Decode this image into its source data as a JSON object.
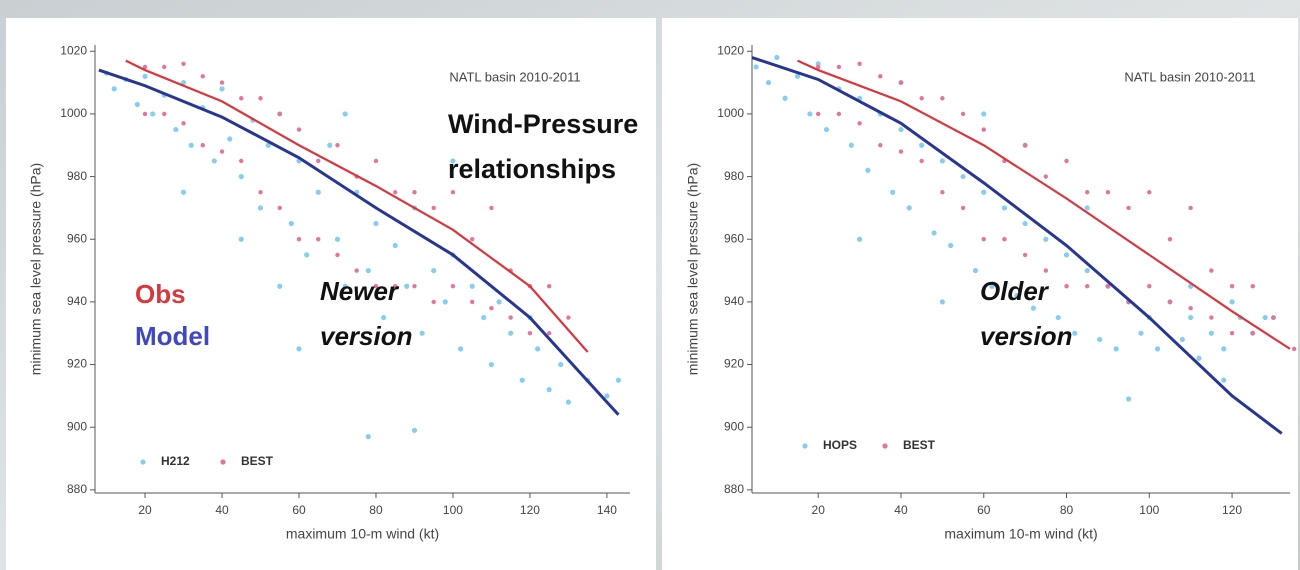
{
  "chart_data": [
    {
      "type": "scatter",
      "title": "NATL basin 2010-2011",
      "xlabel": "maximum 10-m wind (kt)",
      "ylabel": "minimum sea level pressure (hPa)",
      "xlim": [
        7,
        146
      ],
      "ylim": [
        879,
        1022
      ],
      "xticks": [
        20,
        40,
        60,
        80,
        100,
        120,
        140
      ],
      "yticks": [
        880,
        900,
        920,
        940,
        960,
        980,
        1000,
        1020
      ],
      "legend": "lower left",
      "series": [
        {
          "name": "H212",
          "color": "#87cdee",
          "x": [
            10,
            12,
            15,
            18,
            20,
            22,
            25,
            28,
            30,
            32,
            35,
            38,
            40,
            42,
            45,
            48,
            50,
            52,
            55,
            58,
            60,
            62,
            65,
            68,
            70,
            72,
            75,
            78,
            80,
            82,
            85,
            88,
            90,
            92,
            95,
            98,
            100,
            102,
            105,
            108,
            110,
            112,
            115,
            118,
            120,
            122,
            125,
            128,
            130,
            135,
            140,
            143,
            78,
            90,
            60,
            45,
            30,
            100,
            72,
            55
          ],
          "values": [
            1013,
            1008,
            1011,
            1003,
            1012,
            1000,
            1006,
            995,
            1010,
            990,
            1002,
            985,
            1008,
            992,
            980,
            998,
            970,
            990,
            1000,
            965,
            985,
            955,
            975,
            990,
            960,
            945,
            975,
            950,
            965,
            935,
            958,
            945,
            970,
            930,
            950,
            940,
            955,
            925,
            945,
            935,
            920,
            940,
            930,
            915,
            935,
            925,
            912,
            920,
            908,
            915,
            910,
            915,
            897,
            899,
            925,
            960,
            975,
            985,
            1000,
            945
          ]
        },
        {
          "name": "BEST",
          "color": "#e6739a",
          "x": [
            20,
            20,
            25,
            25,
            30,
            30,
            35,
            35,
            40,
            40,
            45,
            45,
            50,
            50,
            55,
            55,
            60,
            60,
            65,
            65,
            70,
            70,
            75,
            75,
            80,
            80,
            85,
            85,
            90,
            90,
            95,
            95,
            100,
            100,
            105,
            105,
            110,
            110,
            115,
            115,
            120,
            120,
            125,
            125,
            130
          ],
          "values": [
            1015,
            1000,
            1015,
            1000,
            1016,
            997,
            1012,
            990,
            1010,
            988,
            1005,
            985,
            1005,
            975,
            1000,
            970,
            995,
            960,
            985,
            960,
            990,
            955,
            980,
            950,
            985,
            945,
            975,
            945,
            975,
            945,
            970,
            940,
            975,
            945,
            960,
            940,
            970,
            938,
            950,
            935,
            945,
            930,
            945,
            930,
            935
          ]
        }
      ],
      "lines": [
        {
          "color": "#d9363e",
          "x": [
            15,
            20,
            40,
            60,
            80,
            100,
            120,
            135
          ],
          "values": [
            1017,
            1014,
            1004,
            990,
            977,
            963,
            945,
            924
          ]
        },
        {
          "color": "#283593",
          "x": [
            8,
            20,
            40,
            60,
            80,
            100,
            120,
            140,
            143
          ],
          "values": [
            1014,
            1009,
            999,
            986,
            970,
            955,
            935,
            908,
            904
          ]
        }
      ],
      "annotations": [
        {
          "lines": [
            "Wind-Pressure",
            "relationships"
          ],
          "color": "#111111"
        },
        {
          "lines": [
            "Obs"
          ],
          "color": "#d9363e"
        },
        {
          "lines": [
            "Model"
          ],
          "color": "#3f48c0"
        },
        {
          "lines": [
            "Newer",
            "version"
          ],
          "color": "#111111"
        }
      ]
    },
    {
      "type": "scatter",
      "title": "NATL basin 2010-2011",
      "xlabel": "maximum 10-m wind (kt)",
      "ylabel": "minimum sea level pressure (hPa)",
      "xlim": [
        4,
        134
      ],
      "ylim": [
        879,
        1022
      ],
      "xticks": [
        20,
        40,
        60,
        80,
        100,
        120
      ],
      "yticks": [
        880,
        900,
        920,
        940,
        960,
        980,
        1000,
        1020
      ],
      "legend": "lower left",
      "series": [
        {
          "name": "HOPS",
          "color": "#87cdee",
          "x": [
            5,
            8,
            10,
            12,
            15,
            18,
            20,
            22,
            25,
            28,
            30,
            32,
            35,
            38,
            40,
            42,
            45,
            48,
            50,
            52,
            55,
            58,
            60,
            62,
            65,
            68,
            70,
            72,
            75,
            78,
            80,
            82,
            85,
            88,
            90,
            92,
            95,
            98,
            100,
            102,
            105,
            108,
            110,
            112,
            115,
            118,
            120,
            122,
            125,
            128,
            130,
            95,
            50,
            30,
            70,
            85,
            110,
            60,
            40,
            118
          ],
          "values": [
            1015,
            1010,
            1018,
            1005,
            1012,
            1000,
            1016,
            995,
            1008,
            990,
            1005,
            982,
            1000,
            975,
            995,
            970,
            990,
            962,
            985,
            958,
            980,
            950,
            975,
            945,
            970,
            942,
            965,
            938,
            960,
            935,
            955,
            930,
            950,
            928,
            945,
            925,
            940,
            930,
            935,
            925,
            940,
            928,
            935,
            922,
            930,
            925,
            940,
            935,
            930,
            935,
            935,
            909,
            940,
            960,
            990,
            970,
            945,
            1000,
            1010,
            915
          ]
        },
        {
          "name": "BEST",
          "color": "#e6739a",
          "x": [
            20,
            20,
            25,
            25,
            30,
            30,
            35,
            35,
            40,
            40,
            45,
            45,
            50,
            50,
            55,
            55,
            60,
            60,
            65,
            65,
            70,
            70,
            75,
            75,
            80,
            80,
            85,
            85,
            90,
            90,
            95,
            95,
            100,
            100,
            105,
            105,
            110,
            110,
            115,
            115,
            120,
            120,
            125,
            125,
            130,
            135
          ],
          "values": [
            1015,
            1000,
            1015,
            1000,
            1016,
            997,
            1012,
            990,
            1010,
            988,
            1005,
            985,
            1005,
            975,
            1000,
            970,
            995,
            960,
            985,
            960,
            990,
            955,
            980,
            950,
            985,
            945,
            975,
            945,
            975,
            945,
            970,
            940,
            975,
            945,
            960,
            940,
            970,
            938,
            950,
            935,
            945,
            930,
            945,
            930,
            935,
            925
          ]
        }
      ],
      "lines": [
        {
          "color": "#d9363e",
          "x": [
            15,
            20,
            40,
            60,
            80,
            100,
            120,
            134
          ],
          "values": [
            1017,
            1014,
            1004,
            990,
            973,
            955,
            937,
            925
          ]
        },
        {
          "color": "#283593",
          "x": [
            4,
            20,
            40,
            60,
            80,
            100,
            120,
            132
          ],
          "values": [
            1018,
            1011,
            997,
            978,
            958,
            935,
            910,
            898
          ]
        }
      ],
      "annotations": [
        {
          "lines": [
            "Older",
            "version"
          ],
          "color": "#111111"
        }
      ]
    }
  ]
}
